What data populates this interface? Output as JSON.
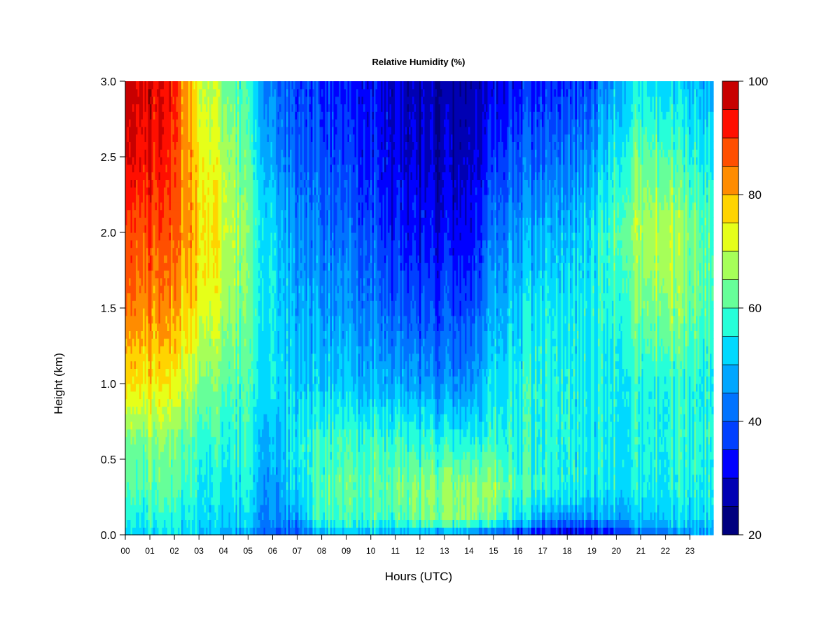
{
  "chart_data": {
    "type": "heatmap",
    "title": "Relative Humidity (%)",
    "xlabel": "Hours (UTC)",
    "ylabel": "Height (km)",
    "x_ticks": [
      "00",
      "01",
      "02",
      "03",
      "04",
      "05",
      "06",
      "07",
      "08",
      "09",
      "10",
      "11",
      "12",
      "13",
      "14",
      "15",
      "16",
      "17",
      "18",
      "19",
      "20",
      "21",
      "22",
      "23"
    ],
    "y_ticks": [
      "0.0",
      "0.5",
      "1.0",
      "1.5",
      "2.0",
      "2.5",
      "3.0"
    ],
    "xlim": [
      0,
      23.95
    ],
    "ylim": [
      0,
      3.0
    ],
    "hours": [
      0,
      1,
      2,
      3,
      4,
      5,
      6,
      7,
      8,
      9,
      10,
      11,
      12,
      13,
      14,
      15,
      16,
      17,
      18,
      19,
      20,
      21,
      22,
      23,
      23.95
    ],
    "heights_km": [
      0.0,
      0.1,
      0.3,
      0.6,
      1.0,
      1.5,
      2.0,
      2.5,
      3.0
    ],
    "rh_percent": [
      [
        53,
        55,
        60,
        62,
        76,
        84,
        88,
        95,
        97
      ],
      [
        52,
        56,
        61,
        64,
        75,
        83,
        88,
        94,
        96
      ],
      [
        53,
        55,
        60,
        62,
        72,
        80,
        85,
        88,
        90
      ],
      [
        52,
        55,
        57,
        60,
        67,
        76,
        79,
        77,
        73
      ],
      [
        50,
        53,
        55,
        58,
        63,
        70,
        73,
        70,
        66
      ],
      [
        47,
        52,
        55,
        57,
        59,
        62,
        63,
        60,
        58
      ],
      [
        41,
        45,
        45,
        49,
        54,
        54,
        53,
        47,
        43
      ],
      [
        40,
        47,
        54,
        56,
        52,
        49,
        46,
        41,
        38
      ],
      [
        49,
        59,
        61,
        59,
        52,
        47,
        43,
        39,
        36
      ],
      [
        50,
        59,
        62,
        60,
        51,
        46,
        42,
        37,
        34
      ],
      [
        49,
        60,
        62,
        60,
        50,
        44,
        40,
        35,
        33
      ],
      [
        47,
        60,
        63,
        59,
        48,
        40,
        34,
        31,
        29
      ],
      [
        46,
        62,
        64,
        57,
        46,
        37,
        32,
        28,
        26
      ],
      [
        45,
        64,
        65,
        57,
        44,
        38,
        31,
        27,
        26
      ],
      [
        44,
        66,
        67,
        58,
        46,
        38,
        33,
        29,
        27
      ],
      [
        39,
        61,
        67,
        58,
        54,
        48,
        43,
        36,
        31
      ],
      [
        35,
        53,
        59,
        57,
        56,
        52,
        46,
        40,
        34
      ],
      [
        32,
        47,
        58,
        57,
        57,
        55,
        49,
        41,
        35
      ],
      [
        27,
        44,
        55,
        56,
        55,
        54,
        49,
        42,
        35
      ],
      [
        29,
        45,
        54,
        55,
        54,
        55,
        53,
        46,
        38
      ],
      [
        35,
        48,
        55,
        56,
        57,
        59,
        63,
        57,
        50
      ],
      [
        41,
        51,
        56,
        57,
        57,
        64,
        68,
        63,
        55
      ],
      [
        44,
        52,
        56,
        57,
        58,
        67,
        71,
        62,
        53
      ],
      [
        45,
        52,
        56,
        57,
        57,
        63,
        64,
        57,
        50
      ],
      [
        46,
        53,
        56,
        57,
        56,
        60,
        60,
        55,
        49
      ]
    ],
    "colorbar": {
      "min": 20,
      "max": 100,
      "step": 5,
      "tick_labels": [
        "20",
        "40",
        "60",
        "80",
        "100"
      ],
      "colors": [
        "#00007f",
        "#0000b3",
        "#0000ff",
        "#0040ff",
        "#0073ff",
        "#00a6ff",
        "#00d9ff",
        "#26ffd9",
        "#66ff99",
        "#a6ff59",
        "#e6ff19",
        "#ffd400",
        "#ff8c00",
        "#ff4f00",
        "#ff0f00",
        "#c80000",
        "#7f0000"
      ]
    },
    "grid": false,
    "legend": "colorbar-right"
  }
}
